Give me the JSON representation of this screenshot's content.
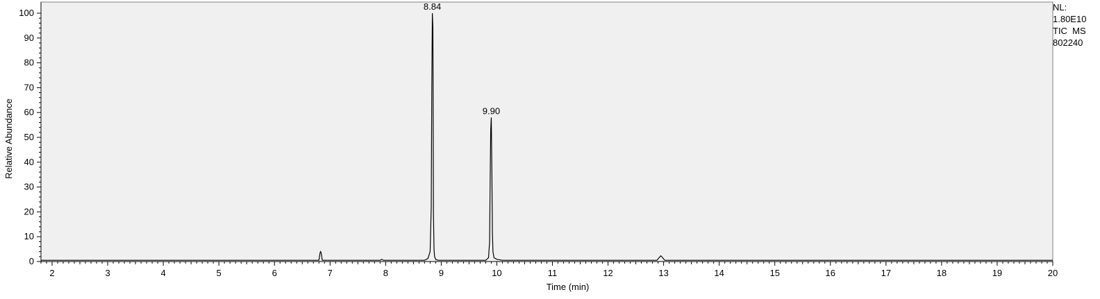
{
  "chart_data": {
    "type": "line",
    "xlabel": "Time (min)",
    "ylabel": "Relative Abundance",
    "xlim": [
      1.8,
      20
    ],
    "ylim": [
      0,
      100
    ],
    "x_ticks": [
      "2",
      "3",
      "4",
      "5",
      "6",
      "7",
      "8",
      "9",
      "10",
      "11",
      "12",
      "13",
      "14",
      "15",
      "16",
      "17",
      "18",
      "19",
      "20"
    ],
    "y_ticks": [
      "0",
      "10",
      "20",
      "30",
      "40",
      "50",
      "60",
      "70",
      "80",
      "90",
      "100"
    ],
    "grid": false,
    "series": [
      {
        "x": [
          1.8,
          6.8,
          6.82,
          6.83,
          6.84,
          6.86,
          7.9,
          7.93,
          7.96,
          8.7,
          8.76,
          8.8,
          8.82,
          8.83,
          8.84,
          8.85,
          8.86,
          8.87,
          8.88,
          8.9,
          8.95,
          9.8,
          9.85,
          9.87,
          9.88,
          9.89,
          9.9,
          9.91,
          9.92,
          9.93,
          9.95,
          10.0,
          10.1,
          12.88,
          12.92,
          12.95,
          12.98,
          13.02,
          20.0
        ],
        "y": [
          0.5,
          0.5,
          3.5,
          4.0,
          3.5,
          0.5,
          0.5,
          0.9,
          0.5,
          0.5,
          1.2,
          4.0,
          22.0,
          70.0,
          100.0,
          94.0,
          19.0,
          5.0,
          2.0,
          0.8,
          0.5,
          0.5,
          1.5,
          8.0,
          33.0,
          53.0,
          58.0,
          38.0,
          12.0,
          4.0,
          1.5,
          0.9,
          0.5,
          0.5,
          1.6,
          2.3,
          1.6,
          0.5,
          0.5
        ]
      }
    ],
    "annotations": [
      {
        "x": 8.84,
        "y": 100,
        "text": "8.84"
      },
      {
        "x": 9.9,
        "y": 58,
        "text": "9.90"
      }
    ]
  },
  "side_info": [
    "NL:",
    "1.80E10",
    "TIC  MS",
    "802240"
  ]
}
